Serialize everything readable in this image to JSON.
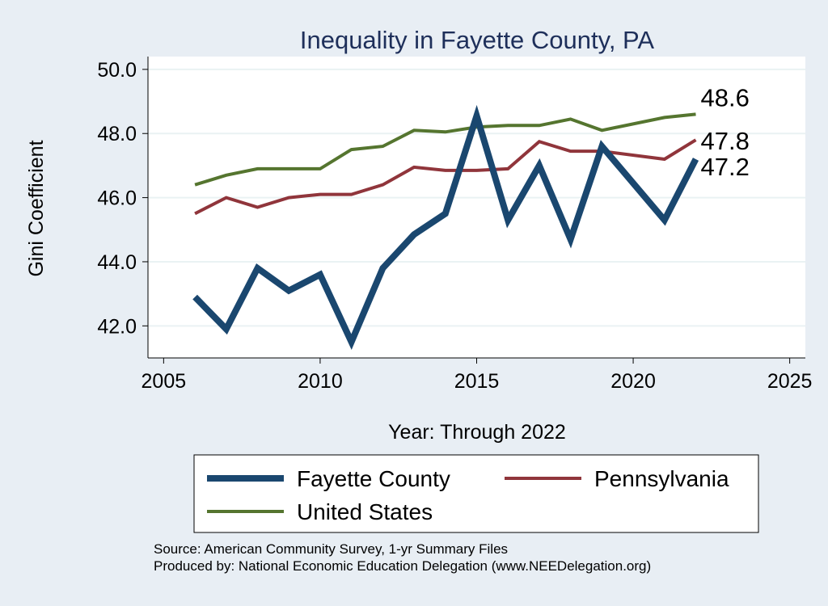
{
  "chart_data": {
    "type": "line",
    "title": "Inequality in Fayette County, PA",
    "xlabel": "Year: Through 2022",
    "ylabel": "Gini Coefficient",
    "xlim": [
      2004.5,
      2025.5
    ],
    "ylim": [
      41.0,
      50.4
    ],
    "xticks": [
      2005,
      2010,
      2015,
      2020,
      2025
    ],
    "yticks": [
      42.0,
      44.0,
      46.0,
      48.0,
      50.0
    ],
    "ytick_labels": [
      "42.0",
      "44.0",
      "46.0",
      "48.0",
      "50.0"
    ],
    "grid": true,
    "legend_position": "bottom",
    "series": [
      {
        "name": "Fayette County",
        "color": "#1a476f",
        "x": [
          2006,
          2007,
          2008,
          2009,
          2010,
          2011,
          2012,
          2013,
          2014,
          2015,
          2016,
          2017,
          2018,
          2019,
          2021,
          2022
        ],
        "values": [
          42.9,
          41.9,
          43.8,
          43.1,
          43.6,
          41.5,
          43.8,
          44.85,
          45.5,
          48.55,
          45.3,
          47.0,
          44.7,
          47.6,
          45.3,
          47.2
        ],
        "end_label": "47.2"
      },
      {
        "name": "Pennsylvania",
        "color": "#90353b",
        "x": [
          2006,
          2007,
          2008,
          2009,
          2010,
          2011,
          2012,
          2013,
          2014,
          2015,
          2016,
          2017,
          2018,
          2019,
          2021,
          2022
        ],
        "values": [
          45.5,
          46.0,
          45.7,
          46.0,
          46.1,
          46.1,
          46.4,
          46.95,
          46.85,
          46.85,
          46.9,
          47.75,
          47.45,
          47.45,
          47.2,
          47.8
        ],
        "end_label": "47.8"
      },
      {
        "name": "United States",
        "color": "#55752f",
        "x": [
          2006,
          2007,
          2008,
          2009,
          2010,
          2011,
          2012,
          2013,
          2014,
          2015,
          2016,
          2017,
          2018,
          2019,
          2021,
          2022
        ],
        "values": [
          46.4,
          46.7,
          46.9,
          46.9,
          46.9,
          47.5,
          47.6,
          48.1,
          48.05,
          48.2,
          48.25,
          48.25,
          48.45,
          48.1,
          48.5,
          48.6
        ],
        "end_label": "48.6"
      }
    ],
    "footnotes": [
      "Source: American Community Survey, 1-yr Summary Files",
      "Produced by: National Economic Education Delegation (www.NEEDelegation.org)"
    ]
  }
}
